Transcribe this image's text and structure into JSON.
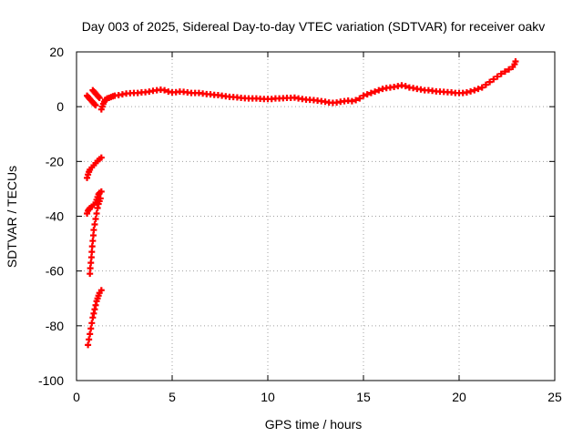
{
  "chart_data": {
    "type": "scatter",
    "title": "Day 003 of 2025, Sidereal Day-to-day VTEC variation (SDTVAR) for receiver oakv",
    "xlabel": "GPS time / hours",
    "ylabel": "SDTVAR / TECUs",
    "xlim": [
      0,
      25
    ],
    "ylim": [
      -100,
      20
    ],
    "xticks": [
      0,
      5,
      10,
      15,
      20,
      25
    ],
    "yticks": [
      -100,
      -80,
      -60,
      -40,
      -20,
      0,
      20
    ],
    "grid": true,
    "marker": "plus",
    "series": [
      {
        "color": "#ff0000",
        "points": [
          [
            0.55,
            4.0
          ],
          [
            0.6,
            3.6
          ],
          [
            0.65,
            3.2
          ],
          [
            0.7,
            2.8
          ],
          [
            0.75,
            2.4
          ],
          [
            0.8,
            2.0
          ],
          [
            0.85,
            1.6
          ],
          [
            0.9,
            1.2
          ],
          [
            0.95,
            0.8
          ],
          [
            1.0,
            0.5
          ],
          [
            0.85,
            6.0
          ],
          [
            0.9,
            5.6
          ],
          [
            0.95,
            5.2
          ],
          [
            1.0,
            4.8
          ],
          [
            1.05,
            4.4
          ],
          [
            1.1,
            4.0
          ],
          [
            1.15,
            3.6
          ],
          [
            1.2,
            3.2
          ],
          [
            1.3,
            -1.0
          ],
          [
            1.35,
            0.0
          ],
          [
            1.4,
            1.0
          ],
          [
            1.45,
            1.8
          ],
          [
            1.5,
            2.5
          ],
          [
            1.6,
            3.0
          ],
          [
            1.7,
            3.2
          ],
          [
            1.8,
            3.5
          ],
          [
            1.9,
            3.8
          ],
          [
            2.0,
            4.0
          ],
          [
            2.2,
            4.2
          ],
          [
            2.4,
            4.5
          ],
          [
            2.6,
            4.8
          ],
          [
            2.8,
            4.9
          ],
          [
            3.0,
            5.0
          ],
          [
            3.2,
            5.0
          ],
          [
            3.4,
            5.2
          ],
          [
            3.6,
            5.3
          ],
          [
            3.8,
            5.5
          ],
          [
            4.0,
            5.8
          ],
          [
            4.2,
            6.0
          ],
          [
            4.4,
            6.2
          ],
          [
            4.6,
            6.0
          ],
          [
            4.8,
            5.5
          ],
          [
            5.0,
            5.2
          ],
          [
            5.2,
            5.3
          ],
          [
            5.4,
            5.5
          ],
          [
            5.6,
            5.4
          ],
          [
            5.8,
            5.2
          ],
          [
            6.0,
            5.0
          ],
          [
            6.2,
            5.0
          ],
          [
            6.4,
            5.0
          ],
          [
            6.6,
            4.8
          ],
          [
            6.8,
            4.6
          ],
          [
            7.0,
            4.5
          ],
          [
            7.2,
            4.3
          ],
          [
            7.4,
            4.2
          ],
          [
            7.6,
            4.0
          ],
          [
            7.8,
            3.8
          ],
          [
            8.0,
            3.6
          ],
          [
            8.2,
            3.5
          ],
          [
            8.4,
            3.4
          ],
          [
            8.6,
            3.2
          ],
          [
            8.8,
            3.1
          ],
          [
            9.0,
            3.0
          ],
          [
            9.2,
            3.0
          ],
          [
            9.4,
            3.0
          ],
          [
            9.6,
            2.9
          ],
          [
            9.8,
            2.8
          ],
          [
            10.0,
            2.8
          ],
          [
            10.2,
            2.8
          ],
          [
            10.4,
            3.0
          ],
          [
            10.6,
            3.0
          ],
          [
            10.8,
            3.1
          ],
          [
            11.0,
            3.2
          ],
          [
            11.2,
            3.2
          ],
          [
            11.4,
            3.3
          ],
          [
            11.6,
            3.0
          ],
          [
            11.8,
            2.8
          ],
          [
            12.0,
            2.6
          ],
          [
            12.2,
            2.5
          ],
          [
            12.4,
            2.4
          ],
          [
            12.6,
            2.2
          ],
          [
            12.8,
            2.0
          ],
          [
            13.0,
            1.8
          ],
          [
            13.2,
            1.5
          ],
          [
            13.4,
            1.4
          ],
          [
            13.6,
            1.5
          ],
          [
            13.8,
            1.8
          ],
          [
            14.0,
            2.0
          ],
          [
            14.2,
            2.2
          ],
          [
            14.4,
            2.0
          ],
          [
            14.6,
            2.4
          ],
          [
            14.8,
            3.0
          ],
          [
            15.0,
            4.0
          ],
          [
            15.2,
            4.5
          ],
          [
            15.4,
            5.0
          ],
          [
            15.6,
            5.5
          ],
          [
            15.8,
            6.0
          ],
          [
            16.0,
            6.5
          ],
          [
            16.2,
            6.8
          ],
          [
            16.4,
            7.0
          ],
          [
            16.6,
            7.2
          ],
          [
            16.8,
            7.5
          ],
          [
            17.0,
            7.8
          ],
          [
            17.2,
            7.5
          ],
          [
            17.4,
            7.0
          ],
          [
            17.6,
            6.8
          ],
          [
            17.8,
            6.5
          ],
          [
            18.0,
            6.3
          ],
          [
            18.2,
            6.0
          ],
          [
            18.4,
            6.0
          ],
          [
            18.6,
            5.8
          ],
          [
            18.8,
            5.6
          ],
          [
            19.0,
            5.5
          ],
          [
            19.2,
            5.4
          ],
          [
            19.4,
            5.3
          ],
          [
            19.6,
            5.2
          ],
          [
            19.8,
            5.0
          ],
          [
            20.0,
            5.0
          ],
          [
            20.2,
            5.0
          ],
          [
            20.4,
            5.2
          ],
          [
            20.6,
            5.6
          ],
          [
            20.8,
            6.0
          ],
          [
            21.0,
            6.5
          ],
          [
            21.2,
            7.0
          ],
          [
            21.4,
            8.0
          ],
          [
            21.6,
            9.0
          ],
          [
            21.8,
            10.0
          ],
          [
            22.0,
            11.0
          ],
          [
            22.2,
            12.0
          ],
          [
            22.4,
            12.8
          ],
          [
            22.6,
            13.6
          ],
          [
            22.8,
            14.5
          ],
          [
            22.9,
            15.5
          ],
          [
            22.95,
            16.5
          ],
          [
            0.55,
            -26.0
          ],
          [
            0.6,
            -24.8
          ],
          [
            0.65,
            -23.8
          ],
          [
            0.7,
            -23.0
          ],
          [
            0.8,
            -22.2
          ],
          [
            0.9,
            -21.4
          ],
          [
            1.0,
            -20.6
          ],
          [
            1.1,
            -19.8
          ],
          [
            1.2,
            -19.2
          ],
          [
            1.3,
            -18.6
          ],
          [
            0.55,
            -39.0
          ],
          [
            0.6,
            -38.0
          ],
          [
            0.65,
            -37.5
          ],
          [
            0.7,
            -37.0
          ],
          [
            0.8,
            -36.5
          ],
          [
            0.9,
            -35.8
          ],
          [
            1.0,
            -35.0
          ],
          [
            1.05,
            -34.0
          ],
          [
            1.1,
            -33.0
          ],
          [
            1.15,
            -32.0
          ],
          [
            1.2,
            -31.5
          ],
          [
            1.3,
            -31.0
          ],
          [
            0.7,
            -61.0
          ],
          [
            0.72,
            -59.0
          ],
          [
            0.75,
            -57.0
          ],
          [
            0.78,
            -55.0
          ],
          [
            0.8,
            -53.0
          ],
          [
            0.82,
            -51.0
          ],
          [
            0.85,
            -49.0
          ],
          [
            0.88,
            -47.0
          ],
          [
            0.9,
            -45.0
          ],
          [
            0.95,
            -43.0
          ],
          [
            1.0,
            -41.0
          ],
          [
            1.05,
            -39.0
          ],
          [
            1.1,
            -37.0
          ],
          [
            1.15,
            -35.5
          ],
          [
            1.2,
            -34.5
          ],
          [
            1.25,
            -33.5
          ],
          [
            0.6,
            -87.0
          ],
          [
            0.65,
            -85.0
          ],
          [
            0.7,
            -83.0
          ],
          [
            0.75,
            -81.0
          ],
          [
            0.8,
            -79.0
          ],
          [
            0.85,
            -77.0
          ],
          [
            0.9,
            -75.5
          ],
          [
            0.95,
            -74.0
          ],
          [
            1.0,
            -72.5
          ],
          [
            1.05,
            -71.0
          ],
          [
            1.1,
            -70.0
          ],
          [
            1.15,
            -69.0
          ],
          [
            1.2,
            -68.0
          ],
          [
            1.3,
            -67.0
          ]
        ]
      }
    ]
  }
}
